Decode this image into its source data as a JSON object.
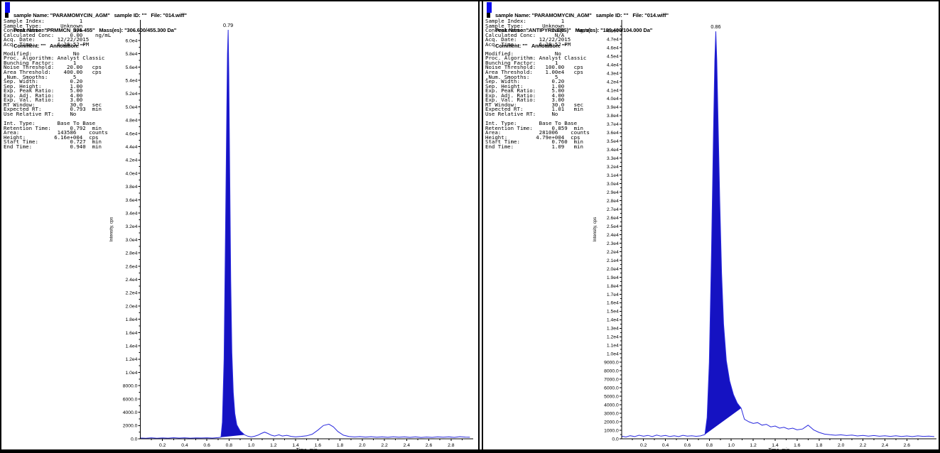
{
  "colors": {
    "trace": "#2a2ade",
    "fill": "#1512c2",
    "header_bar_blue": "#0a0af0",
    "axis": "#000000",
    "text": "#000000",
    "background": "#ffffff"
  },
  "panels": [
    {
      "header": {
        "line1": "sample Name: \"PARAMOMYCIN_AGM\"   sample ID: \"\"   File: \"014.wiff\"",
        "line2": "Peak Name: \"PRMMCN_306-455\"   Mass(es): \"306.600/455.300 Da\"",
        "line3": "Comment: \"\"   Annotation: \"\""
      },
      "info_lines": [
        "Sample Index:           1",
        "Sample Type:      Unknown",
        "Concentration:        N/A",
        "Calculated Conc:     0.00    ng/mL",
        "Acq. Date:       12/22/2015",
        "Acq. Time:       6:26:52 PM",
        "",
        "Modified:             No",
        "Proc. Algorithm: Analyst Classic",
        "Bunching Factor:      1",
        "Noise Threshold:    20.00   cps",
        "Area Threshold:    400.00   cps",
        ",Num. Smooths:        5",
        "Sep. Width:          0.20",
        "Sep. Height:         1.00",
        "Exp. Peak Ratio:     5.00",
        "Exp. Adj. Ratio:     4.00",
        "Exp. Val. Ratio:     3.00",
        "RT Window:           30.0   sec",
        "Expected RT:         0.793  min",
        "Use Relative RT:     No",
        "",
        "Int. Type:       Base To Base",
        "Retention Time:      0.792  min",
        "Area:            143586    counts",
        "Height:         6.16e+004  cps",
        "Start Time:          0.727  min",
        "End Time:            0.940  min"
      ]
    },
    {
      "header": {
        "line1": "sample Name: \"PARAMOMYCIN_AGM\"   sample ID: \"\"   File: \"014.wiff\"",
        "line2": "Peak Name: \"ANTIPYRINE(IS)\"   Mass(es): \"189.400/104.000 Da\"",
        "line3": "Comment: \"\"   Annotation: \"\""
      },
      "info_lines": [
        "Sample Index:           1",
        "Sample Type:      Unknown",
        "Concentration:       1.00    ng/mL",
        "Calculated Conc:      N/A",
        "Acq. Date:       12/22/2015",
        "Acq. Time:       6:26:52 PM",
        "",
        "Modified:             No",
        "Proc. Algorithm: Analyst Classic",
        "Bunching Factor:      1",
        "Noise Threshold:   100.00   cps",
        "Area Threshold:    1.00e4   cps",
        ",Num. Smooths:        5",
        "Sep. Width:          0.20",
        "Sep. Height:         1.00",
        "Exp. Peak Ratio:     5.00",
        "Exp. Adj. Ratio:     4.00",
        "Exp. Val. Ratio:     3.00",
        "RT Window:           30.0   sec",
        "Expected RT:         1.01   min",
        "Use Relative RT:     No",
        "",
        "Int. Type:       Base To Base",
        "Retention Time:      0.859  min",
        "Area:            281006    counts",
        "Height:         4.79e+004  cps",
        "Start Time:          0.760  min",
        "End Time:            1.09   min"
      ]
    }
  ],
  "chart_data": [
    {
      "type": "area",
      "xlabel": "Time, min",
      "ylabel": "Intensity, cps",
      "xlim": [
        0,
        3.0
      ],
      "ylim": [
        0,
        63000
      ],
      "y_max_tick": 60000,
      "x_minor_step": 0.1,
      "grid": false,
      "legend": "none",
      "x_tick_labels": [
        "0.2",
        "0.4",
        "0.6",
        "0.8",
        "1.0",
        "1.2",
        "1.4",
        "1.6",
        "1.8",
        "2.0",
        "2.2",
        "2.4",
        "2.6",
        "2.8"
      ],
      "y_tick_labels": [
        "0.0",
        "2000.0",
        "4000.0",
        "6000.0",
        "8000.0",
        "1.0e4",
        "1.2e4",
        "1.4e4",
        "1.6e4",
        "1.8e4",
        "2.0e4",
        "2.2e4",
        "2.4e4",
        "2.6e4",
        "2.8e4",
        "3.0e4",
        "3.2e4",
        "3.4e4",
        "3.6e4",
        "3.8e4",
        "4.0e4",
        "4.2e4",
        "4.4e4",
        "4.6e4",
        "4.8e4",
        "5.0e4",
        "5.2e4",
        "5.4e4",
        "5.6e4",
        "5.8e4",
        "6.0e4"
      ],
      "peak": {
        "label": "0.79",
        "retention_time_min": 0.792,
        "height_cps": 61600,
        "area_counts": 143586,
        "start_min": 0.727,
        "end_min": 0.94
      },
      "fill": {
        "from": 0.727,
        "to": 0.94,
        "base_from": 250,
        "base_to": 600
      },
      "trace": [
        [
          0.0,
          120
        ],
        [
          0.05,
          80
        ],
        [
          0.1,
          150
        ],
        [
          0.15,
          90
        ],
        [
          0.2,
          140
        ],
        [
          0.25,
          100
        ],
        [
          0.3,
          160
        ],
        [
          0.35,
          110
        ],
        [
          0.4,
          150
        ],
        [
          0.45,
          100
        ],
        [
          0.5,
          140
        ],
        [
          0.55,
          120
        ],
        [
          0.6,
          150
        ],
        [
          0.65,
          110
        ],
        [
          0.7,
          170
        ],
        [
          0.727,
          250
        ],
        [
          0.74,
          2500
        ],
        [
          0.755,
          12000
        ],
        [
          0.77,
          34000
        ],
        [
          0.78,
          50000
        ],
        [
          0.786,
          58000
        ],
        [
          0.792,
          61600
        ],
        [
          0.798,
          55000
        ],
        [
          0.806,
          40000
        ],
        [
          0.815,
          24000
        ],
        [
          0.825,
          13000
        ],
        [
          0.838,
          7000
        ],
        [
          0.852,
          3800
        ],
        [
          0.87,
          2100
        ],
        [
          0.9,
          1200
        ],
        [
          0.94,
          600
        ],
        [
          0.97,
          380
        ],
        [
          1.0,
          300
        ],
        [
          1.03,
          380
        ],
        [
          1.06,
          550
        ],
        [
          1.09,
          800
        ],
        [
          1.12,
          1000
        ],
        [
          1.15,
          800
        ],
        [
          1.18,
          550
        ],
        [
          1.21,
          420
        ],
        [
          1.25,
          600
        ],
        [
          1.28,
          420
        ],
        [
          1.32,
          520
        ],
        [
          1.36,
          360
        ],
        [
          1.4,
          300
        ],
        [
          1.45,
          360
        ],
        [
          1.5,
          450
        ],
        [
          1.55,
          700
        ],
        [
          1.6,
          1300
        ],
        [
          1.65,
          2000
        ],
        [
          1.7,
          2200
        ],
        [
          1.74,
          1800
        ],
        [
          1.78,
          1100
        ],
        [
          1.83,
          550
        ],
        [
          1.88,
          350
        ],
        [
          1.93,
          280
        ],
        [
          1.98,
          330
        ],
        [
          2.03,
          260
        ],
        [
          2.08,
          320
        ],
        [
          2.13,
          230
        ],
        [
          2.18,
          300
        ],
        [
          2.23,
          220
        ],
        [
          2.28,
          310
        ],
        [
          2.33,
          230
        ],
        [
          2.38,
          300
        ],
        [
          2.43,
          210
        ],
        [
          2.48,
          290
        ],
        [
          2.53,
          200
        ],
        [
          2.58,
          270
        ],
        [
          2.63,
          210
        ],
        [
          2.68,
          300
        ],
        [
          2.73,
          230
        ],
        [
          2.78,
          290
        ],
        [
          2.83,
          210
        ],
        [
          2.88,
          320
        ],
        [
          2.93,
          260
        ],
        [
          2.97,
          230
        ]
      ]
    },
    {
      "type": "area",
      "xlabel": "Time, min",
      "ylabel": "Intensity, cps",
      "xlim": [
        0,
        2.87
      ],
      "ylim": [
        0,
        48600
      ],
      "y_max_tick": 48000,
      "x_minor_step": 0.1,
      "grid": false,
      "legend": "none",
      "x_tick_labels": [
        "0.2",
        "0.4",
        "0.6",
        "0.8",
        "1.0",
        "1.2",
        "1.4",
        "1.6",
        "1.8",
        "2.0",
        "2.2",
        "2.4",
        "2.6"
      ],
      "y_tick_labels": [
        "0.0",
        "1000.0",
        "2000.0",
        "3000.0",
        "4000.0",
        "5000.0",
        "6000.0",
        "7000.0",
        "8000.0",
        "9000.0",
        "1.0e4",
        "1.1e4",
        "1.2e4",
        "1.3e4",
        "1.4e4",
        "1.5e4",
        "1.6e4",
        "1.7e4",
        "1.8e4",
        "1.9e4",
        "2.0e4",
        "2.1e4",
        "2.2e4",
        "2.3e4",
        "2.4e4",
        "2.5e4",
        "2.6e4",
        "2.7e4",
        "2.8e4",
        "2.9e4",
        "3.0e4",
        "3.1e4",
        "3.2e4",
        "3.3e4",
        "3.4e4",
        "3.5e4",
        "3.6e4",
        "3.7e4",
        "3.8e4",
        "3.9e4",
        "4.0e4",
        "4.1e4",
        "4.2e4",
        "4.3e4",
        "4.4e4",
        "4.5e4",
        "4.6e4",
        "4.7e4",
        "4.8e4"
      ],
      "peak": {
        "label": "0.86",
        "retention_time_min": 0.859,
        "height_cps": 47900,
        "area_counts": 281006,
        "start_min": 0.76,
        "end_min": 1.09
      },
      "fill": {
        "from": 0.76,
        "to": 1.09,
        "base_from": 500,
        "base_to": 3600
      },
      "trace": [
        [
          0.0,
          320
        ],
        [
          0.04,
          220
        ],
        [
          0.08,
          360
        ],
        [
          0.12,
          260
        ],
        [
          0.16,
          420
        ],
        [
          0.2,
          300
        ],
        [
          0.24,
          400
        ],
        [
          0.28,
          270
        ],
        [
          0.32,
          430
        ],
        [
          0.36,
          310
        ],
        [
          0.4,
          390
        ],
        [
          0.44,
          270
        ],
        [
          0.48,
          360
        ],
        [
          0.52,
          260
        ],
        [
          0.56,
          410
        ],
        [
          0.6,
          310
        ],
        [
          0.64,
          360
        ],
        [
          0.68,
          290
        ],
        [
          0.72,
          340
        ],
        [
          0.76,
          500
        ],
        [
          0.78,
          2500
        ],
        [
          0.8,
          9000
        ],
        [
          0.82,
          22000
        ],
        [
          0.838,
          36000
        ],
        [
          0.85,
          44500
        ],
        [
          0.859,
          47900
        ],
        [
          0.868,
          44500
        ],
        [
          0.88,
          37000
        ],
        [
          0.895,
          28000
        ],
        [
          0.912,
          19500
        ],
        [
          0.93,
          13500
        ],
        [
          0.955,
          9200
        ],
        [
          0.985,
          6800
        ],
        [
          1.02,
          5200
        ],
        [
          1.055,
          4200
        ],
        [
          1.09,
          3600
        ],
        [
          1.12,
          2300
        ],
        [
          1.16,
          2000
        ],
        [
          1.2,
          1800
        ],
        [
          1.24,
          1900
        ],
        [
          1.28,
          1600
        ],
        [
          1.32,
          1700
        ],
        [
          1.36,
          1400
        ],
        [
          1.4,
          1500
        ],
        [
          1.44,
          1250
        ],
        [
          1.48,
          1350
        ],
        [
          1.52,
          1150
        ],
        [
          1.56,
          1250
        ],
        [
          1.6,
          1050
        ],
        [
          1.65,
          1150
        ],
        [
          1.7,
          1600
        ],
        [
          1.75,
          1050
        ],
        [
          1.8,
          750
        ],
        [
          1.85,
          550
        ],
        [
          1.9,
          480
        ],
        [
          1.95,
          420
        ],
        [
          2.0,
          470
        ],
        [
          2.05,
          380
        ],
        [
          2.1,
          430
        ],
        [
          2.15,
          330
        ],
        [
          2.2,
          400
        ],
        [
          2.25,
          320
        ],
        [
          2.3,
          380
        ],
        [
          2.35,
          300
        ],
        [
          2.4,
          360
        ],
        [
          2.45,
          280
        ],
        [
          2.5,
          350
        ],
        [
          2.55,
          270
        ],
        [
          2.6,
          330
        ],
        [
          2.65,
          260
        ],
        [
          2.7,
          340
        ],
        [
          2.75,
          280
        ],
        [
          2.8,
          320
        ],
        [
          2.85,
          260
        ]
      ]
    }
  ]
}
